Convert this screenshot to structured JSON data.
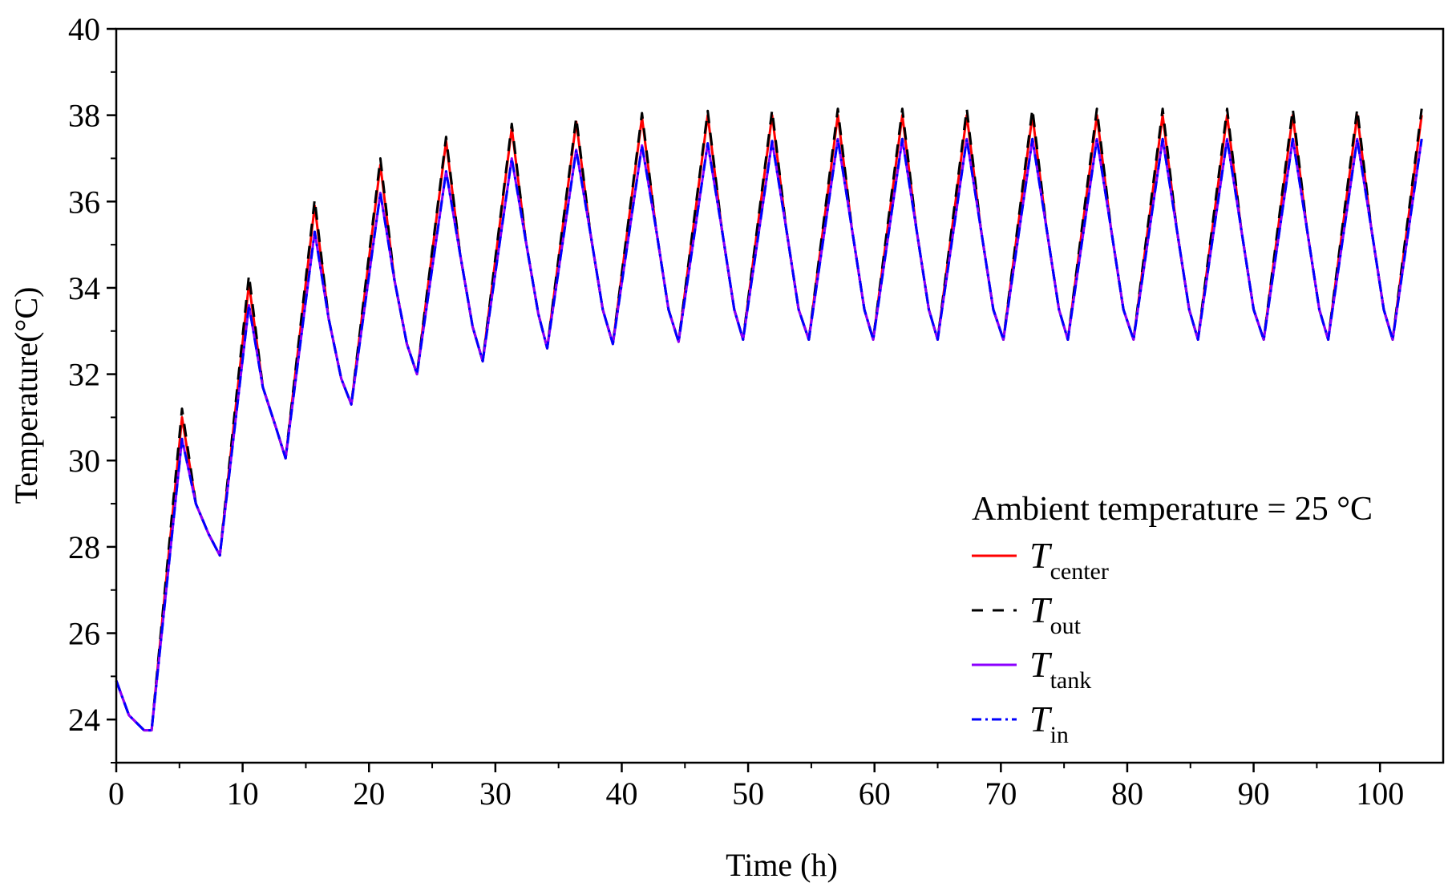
{
  "chart_data": {
    "type": "line",
    "title": "",
    "xlabel": "Time (h)",
    "ylabel": "Temperature(°C)",
    "xlim": [
      0,
      105
    ],
    "ylim": [
      23,
      40
    ],
    "xticks": [
      0,
      10,
      20,
      30,
      40,
      50,
      60,
      70,
      80,
      90,
      100
    ],
    "yticks": [
      24,
      26,
      28,
      30,
      32,
      34,
      36,
      38,
      40
    ],
    "grid": false,
    "legend_placement": "bottom-right",
    "legend_title": "Ambient temperature = 25 °C",
    "series": [
      {
        "name": "T_center",
        "label_main": "T",
        "label_sub": "center",
        "color": "#ff0000",
        "style": "solid",
        "x": [
          0,
          1.0,
          2.2,
          2.8,
          5.2,
          6.3,
          7.3,
          8.2,
          10.5,
          11.6,
          12.6,
          13.4,
          15.7,
          16.8,
          17.8,
          18.6,
          20.9,
          22.0,
          23.0,
          23.8,
          26.1,
          27.2,
          28.2,
          29.0,
          31.3,
          32.4,
          33.4,
          34.1,
          36.4,
          37.5,
          38.5,
          39.3,
          41.6,
          42.7,
          43.7,
          44.5,
          46.8,
          47.9,
          48.9,
          49.6,
          51.9,
          53.0,
          54.0,
          54.8,
          57.1,
          58.2,
          59.2,
          59.9,
          62.2,
          63.3,
          64.3,
          65.0,
          67.3,
          68.4,
          69.4,
          70.2,
          72.5,
          73.6,
          74.6,
          75.3,
          77.6,
          78.7,
          79.7,
          80.5,
          82.8,
          83.9,
          84.9,
          85.6,
          87.9,
          89.0,
          90.0,
          90.8,
          93.1,
          94.2,
          95.2,
          95.9,
          98.2,
          99.3,
          100.3,
          101.0,
          103.3
        ],
        "y": [
          24.9,
          24.1,
          23.75,
          23.75,
          31.0,
          29.0,
          28.3,
          27.8,
          34.1,
          31.7,
          30.8,
          30.05,
          35.9,
          33.3,
          31.9,
          31.3,
          36.85,
          34.2,
          32.7,
          32.0,
          37.4,
          34.8,
          33.1,
          32.3,
          37.7,
          35.1,
          33.4,
          32.6,
          37.85,
          35.3,
          33.5,
          32.7,
          37.95,
          35.4,
          33.5,
          32.75,
          38.0,
          35.4,
          33.5,
          32.8,
          38.0,
          35.4,
          33.5,
          32.8,
          38.0,
          35.4,
          33.5,
          32.8,
          38.0,
          35.4,
          33.5,
          32.8,
          38.0,
          35.4,
          33.5,
          32.8,
          38.0,
          35.4,
          33.5,
          32.8,
          38.0,
          35.4,
          33.5,
          32.8,
          38.0,
          35.4,
          33.5,
          32.8,
          38.0,
          35.4,
          33.5,
          32.8,
          38.0,
          35.4,
          33.5,
          32.8,
          38.0,
          35.4,
          33.5,
          32.8,
          38.0
        ]
      },
      {
        "name": "T_out",
        "label_main": "T",
        "label_sub": "out",
        "color": "#000000",
        "style": "dashed",
        "x": [
          0,
          1.0,
          2.2,
          2.8,
          5.2,
          6.3,
          7.3,
          8.2,
          10.5,
          11.6,
          12.6,
          13.4,
          15.7,
          16.8,
          17.8,
          18.6,
          20.9,
          22.0,
          23.0,
          23.8,
          26.1,
          27.2,
          28.2,
          29.0,
          31.3,
          32.4,
          33.4,
          34.1,
          36.4,
          37.5,
          38.5,
          39.3,
          41.6,
          42.7,
          43.7,
          44.5,
          46.8,
          47.9,
          48.9,
          49.6,
          51.9,
          53.0,
          54.0,
          54.8,
          57.1,
          58.2,
          59.2,
          59.9,
          62.2,
          63.3,
          64.3,
          65.0,
          67.3,
          68.4,
          69.4,
          70.2,
          72.5,
          73.6,
          74.6,
          75.3,
          77.6,
          78.7,
          79.7,
          80.5,
          82.8,
          83.9,
          84.9,
          85.6,
          87.9,
          89.0,
          90.0,
          90.8,
          93.1,
          94.2,
          95.2,
          95.9,
          98.2,
          99.3,
          100.3,
          101.0,
          103.3
        ],
        "y": [
          24.9,
          24.1,
          23.75,
          23.75,
          31.2,
          29.0,
          28.3,
          27.8,
          34.3,
          31.7,
          30.8,
          30.05,
          36.05,
          33.3,
          31.9,
          31.3,
          37.0,
          34.2,
          32.7,
          32.0,
          37.5,
          34.8,
          33.1,
          32.3,
          37.8,
          35.1,
          33.4,
          32.6,
          37.95,
          35.3,
          33.5,
          32.7,
          38.05,
          35.4,
          33.5,
          32.75,
          38.1,
          35.4,
          33.5,
          32.8,
          38.12,
          35.4,
          33.5,
          32.8,
          38.15,
          35.4,
          33.5,
          32.8,
          38.15,
          35.4,
          33.5,
          32.8,
          38.15,
          35.4,
          33.5,
          32.8,
          38.15,
          35.4,
          33.5,
          32.8,
          38.15,
          35.4,
          33.5,
          32.8,
          38.15,
          35.4,
          33.5,
          32.8,
          38.15,
          35.4,
          33.5,
          32.8,
          38.15,
          35.4,
          33.5,
          32.8,
          38.15,
          35.4,
          33.5,
          32.8,
          38.15
        ]
      },
      {
        "name": "T_tank",
        "label_main": "T",
        "label_sub": "tank",
        "color": "#8b00ff",
        "style": "solid",
        "x": [
          0,
          1.0,
          2.2,
          2.8,
          5.2,
          6.3,
          7.3,
          8.2,
          10.5,
          11.6,
          12.6,
          13.4,
          15.7,
          16.8,
          17.8,
          18.6,
          20.9,
          22.0,
          23.0,
          23.8,
          26.1,
          27.2,
          28.2,
          29.0,
          31.3,
          32.4,
          33.4,
          34.1,
          36.4,
          37.5,
          38.5,
          39.3,
          41.6,
          42.7,
          43.7,
          44.5,
          46.8,
          47.9,
          48.9,
          49.6,
          51.9,
          53.0,
          54.0,
          54.8,
          57.1,
          58.2,
          59.2,
          59.9,
          62.2,
          63.3,
          64.3,
          65.0,
          67.3,
          68.4,
          69.4,
          70.2,
          72.5,
          73.6,
          74.6,
          75.3,
          77.6,
          78.7,
          79.7,
          80.5,
          82.8,
          83.9,
          84.9,
          85.6,
          87.9,
          89.0,
          90.0,
          90.8,
          93.1,
          94.2,
          95.2,
          95.9,
          98.2,
          99.3,
          100.3,
          101.0,
          103.3
        ],
        "y": [
          24.9,
          24.1,
          23.75,
          23.75,
          30.5,
          29.0,
          28.3,
          27.8,
          33.6,
          31.7,
          30.8,
          30.05,
          35.3,
          33.3,
          31.9,
          31.3,
          36.2,
          34.2,
          32.7,
          32.0,
          36.7,
          34.8,
          33.1,
          32.3,
          37.0,
          35.1,
          33.4,
          32.6,
          37.2,
          35.3,
          33.5,
          32.7,
          37.3,
          35.4,
          33.5,
          32.75,
          37.35,
          35.4,
          33.5,
          32.8,
          37.4,
          35.4,
          33.5,
          32.8,
          37.45,
          35.4,
          33.5,
          32.8,
          37.45,
          35.4,
          33.5,
          32.8,
          37.45,
          35.4,
          33.5,
          32.8,
          37.45,
          35.4,
          33.5,
          32.8,
          37.45,
          35.4,
          33.5,
          32.8,
          37.45,
          35.4,
          33.5,
          32.8,
          37.45,
          35.4,
          33.5,
          32.8,
          37.45,
          35.4,
          33.5,
          32.8,
          37.45,
          35.4,
          33.5,
          32.8,
          37.45
        ]
      },
      {
        "name": "T_in",
        "label_main": "T",
        "label_sub": "in",
        "color": "#0000ff",
        "style": "dashdot",
        "x": [
          0,
          1.0,
          2.2,
          2.8,
          5.2,
          6.3,
          7.3,
          8.2,
          10.5,
          11.6,
          12.6,
          13.4,
          15.7,
          16.8,
          17.8,
          18.6,
          20.9,
          22.0,
          23.0,
          23.8,
          26.1,
          27.2,
          28.2,
          29.0,
          31.3,
          32.4,
          33.4,
          34.1,
          36.4,
          37.5,
          38.5,
          39.3,
          41.6,
          42.7,
          43.7,
          44.5,
          46.8,
          47.9,
          48.9,
          49.6,
          51.9,
          53.0,
          54.0,
          54.8,
          57.1,
          58.2,
          59.2,
          59.9,
          62.2,
          63.3,
          64.3,
          65.0,
          67.3,
          68.4,
          69.4,
          70.2,
          72.5,
          73.6,
          74.6,
          75.3,
          77.6,
          78.7,
          79.7,
          80.5,
          82.8,
          83.9,
          84.9,
          85.6,
          87.9,
          89.0,
          90.0,
          90.8,
          93.1,
          94.2,
          95.2,
          95.9,
          98.2,
          99.3,
          100.3,
          101.0,
          103.3
        ],
        "y": [
          24.9,
          24.1,
          23.75,
          23.75,
          30.5,
          29.0,
          28.3,
          27.8,
          33.6,
          31.7,
          30.8,
          30.05,
          35.3,
          33.3,
          31.9,
          31.3,
          36.2,
          34.2,
          32.7,
          32.0,
          36.7,
          34.8,
          33.1,
          32.3,
          37.0,
          35.1,
          33.4,
          32.6,
          37.2,
          35.3,
          33.5,
          32.7,
          37.3,
          35.4,
          33.5,
          32.75,
          37.35,
          35.4,
          33.5,
          32.8,
          37.4,
          35.4,
          33.5,
          32.8,
          37.45,
          35.4,
          33.5,
          32.8,
          37.45,
          35.4,
          33.5,
          32.8,
          37.45,
          35.4,
          33.5,
          32.8,
          37.45,
          35.4,
          33.5,
          32.8,
          37.45,
          35.4,
          33.5,
          32.8,
          37.45,
          35.4,
          33.5,
          32.8,
          37.45,
          35.4,
          33.5,
          32.8,
          37.45,
          35.4,
          33.5,
          32.8,
          37.45,
          35.4,
          33.5,
          32.8,
          37.45
        ]
      }
    ]
  }
}
